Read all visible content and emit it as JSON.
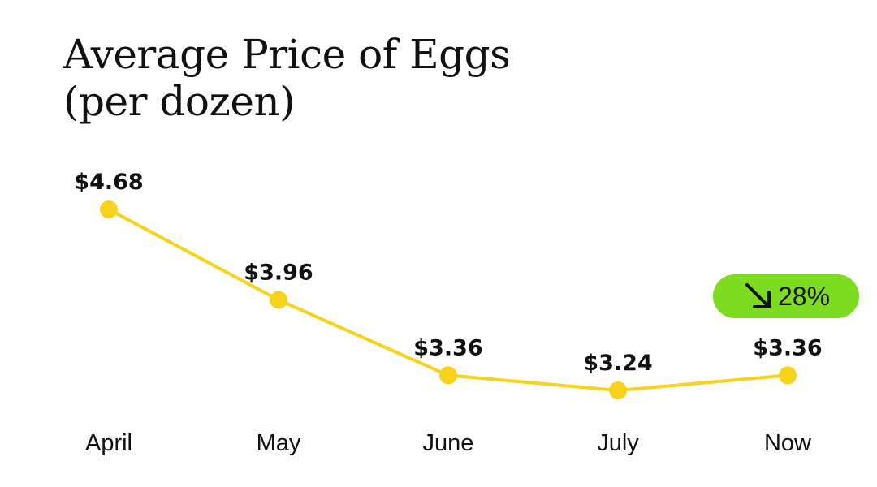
{
  "title": {
    "line1": "Average Price of Eggs",
    "line2": "(per dozen)"
  },
  "badge": {
    "icon": "arrow-down-right-icon",
    "text": "28%",
    "color": "#7ddc1f"
  },
  "chart_data": {
    "type": "line",
    "title": "Average Price of Eggs (per dozen)",
    "xlabel": "",
    "ylabel": "",
    "categories": [
      "April",
      "May",
      "June",
      "July",
      "Now"
    ],
    "values": [
      4.68,
      3.96,
      3.36,
      3.24,
      3.36
    ],
    "data_labels": [
      "$4.68",
      "$3.96",
      "$3.36",
      "$3.24",
      "$3.36"
    ],
    "ylim": [
      3.0,
      4.8
    ],
    "grid": false,
    "line_color": "#f7d31c"
  }
}
